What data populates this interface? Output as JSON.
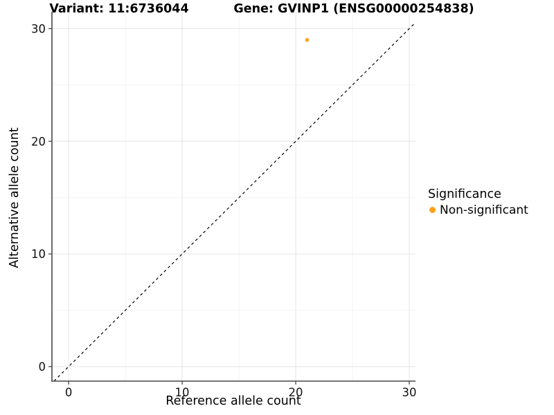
{
  "chart_data": {
    "type": "scatter",
    "titles": [
      "Variant: 11:6736044",
      "Gene: GVINP1 (ENSG00000254838)"
    ],
    "xlabel": "Reference allele count",
    "ylabel": "Alternative allele count",
    "x_ticks": [
      0,
      10,
      20,
      30
    ],
    "y_ticks": [
      0,
      10,
      20,
      30
    ],
    "x_minor_ticks": [
      5,
      15,
      25
    ],
    "y_minor_ticks": [
      5,
      15,
      25
    ],
    "xlim": [
      -1.47,
      30.55
    ],
    "ylim": [
      -1.29,
      31.5
    ],
    "grid": "major-and-minor",
    "legend_position": "right",
    "legend_title": "Significance",
    "identity_line": {
      "slope": 1,
      "intercept": 0,
      "style": "dashed",
      "color": "#000000"
    },
    "series": [
      {
        "name": "Non-significant",
        "color": "#FBA31E",
        "points": [
          {
            "x": 21,
            "y": 29
          }
        ]
      }
    ]
  },
  "colors": {
    "background": "#ffffff",
    "grid_major": "#E4E4E4",
    "grid_minor": "#F2F2F2",
    "axis_line": "#474747",
    "tick_text": "#111111",
    "point_orange": "#FBA31E"
  }
}
